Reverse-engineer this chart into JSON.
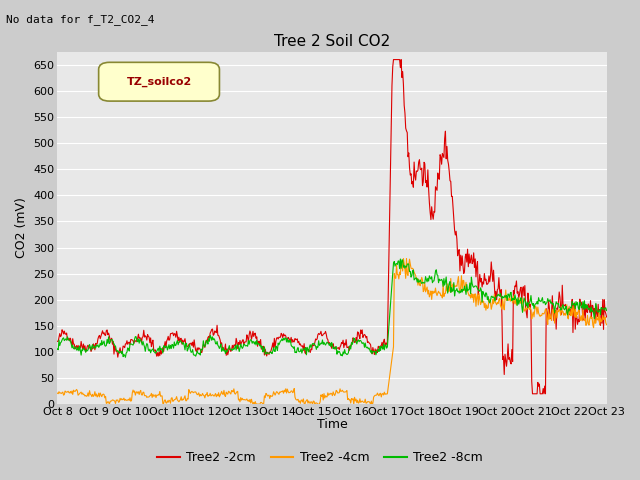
{
  "title": "Tree 2 Soil CO2",
  "subtitle": "No data for f_T2_CO2_4",
  "ylabel": "CO2 (mV)",
  "xlabel": "Time",
  "legend_box_label": "TZ_soilco2",
  "legend_entries": [
    "Tree2 -2cm",
    "Tree2 -4cm",
    "Tree2 -8cm"
  ],
  "line_colors": [
    "#dd0000",
    "#ff9900",
    "#00bb00"
  ],
  "fig_facecolor": "#cccccc",
  "ax_facecolor": "#e8e8e8",
  "grid_color": "#ffffff",
  "ylim": [
    0,
    675
  ],
  "yticks": [
    0,
    50,
    100,
    150,
    200,
    250,
    300,
    350,
    400,
    450,
    500,
    550,
    600,
    650
  ],
  "xticklabels": [
    "Oct 8",
    "Oct 9",
    "Oct 10",
    "Oct 11",
    "Oct 12",
    "Oct 13",
    "Oct 14",
    "Oct 15",
    "Oct 16",
    "Oct 17",
    "Oct 18",
    "Oct 19",
    "Oct 20",
    "Oct 21",
    "Oct 22",
    "Oct 23"
  ],
  "num_days": 15,
  "points_per_day": 48,
  "transition_day": 9.0,
  "seed": 42,
  "title_fontsize": 11,
  "subtitle_fontsize": 8,
  "tick_fontsize": 8,
  "axis_label_fontsize": 9,
  "legend_fontsize": 8
}
